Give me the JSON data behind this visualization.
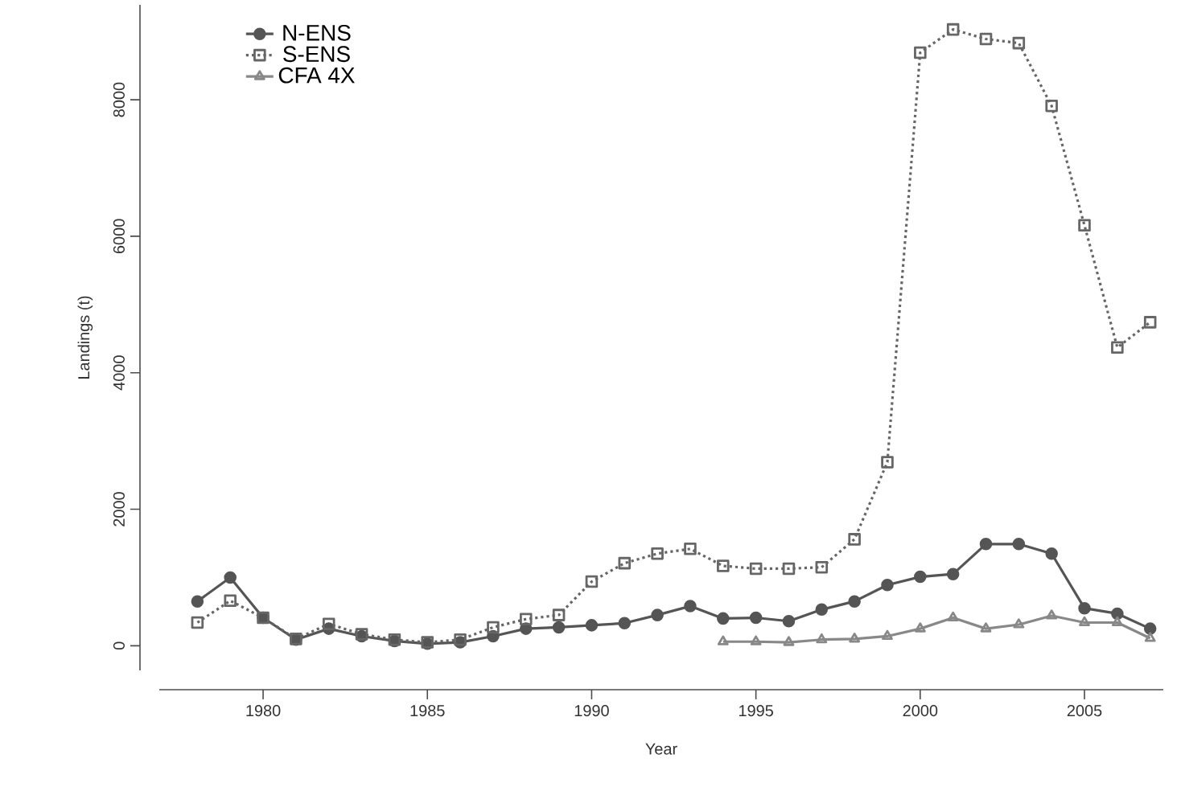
{
  "chart_data": {
    "type": "line",
    "xlabel": "Year",
    "ylabel": "Landings (t)",
    "x": [
      1978,
      1979,
      1980,
      1981,
      1982,
      1983,
      1984,
      1985,
      1986,
      1987,
      1988,
      1989,
      1990,
      1991,
      1992,
      1993,
      1994,
      1995,
      1996,
      1997,
      1998,
      1999,
      2000,
      2001,
      2002,
      2003,
      2004,
      2005,
      2006,
      2007
    ],
    "series": [
      {
        "name": "N-ENS",
        "color": "#555555",
        "marker": "circle",
        "line_style": "solid",
        "values": [
          650,
          1000,
          410,
          90,
          250,
          140,
          70,
          30,
          50,
          140,
          250,
          270,
          300,
          330,
          450,
          580,
          400,
          410,
          360,
          530,
          650,
          890,
          1010,
          1050,
          1490,
          1490,
          1350,
          550,
          470,
          250
        ]
      },
      {
        "name": "S-ENS",
        "color": "#666666",
        "marker": "square",
        "line_style": "dotted",
        "values": [
          340,
          660,
          410,
          100,
          320,
          170,
          90,
          50,
          90,
          270,
          390,
          450,
          940,
          1210,
          1350,
          1420,
          1170,
          1130,
          1130,
          1150,
          1560,
          2690,
          8690,
          9030,
          8890,
          8830,
          7910,
          6160,
          4370,
          4740
        ]
      },
      {
        "name": "CFA 4X",
        "color": "#888888",
        "marker": "triangle",
        "line_style": "solid",
        "values": [
          null,
          null,
          null,
          null,
          null,
          null,
          null,
          null,
          null,
          null,
          null,
          null,
          null,
          null,
          null,
          null,
          60,
          60,
          50,
          90,
          100,
          140,
          250,
          410,
          250,
          310,
          440,
          340,
          340,
          110
        ]
      }
    ],
    "xlim": [
      1976.84,
      2007.4
    ],
    "ylim": [
      -361,
      9391
    ],
    "xticks": [
      1980,
      1985,
      1990,
      1995,
      2000,
      2005
    ],
    "yticks": [
      0,
      2000,
      4000,
      6000,
      8000
    ],
    "legend": "top left",
    "grid": false
  }
}
